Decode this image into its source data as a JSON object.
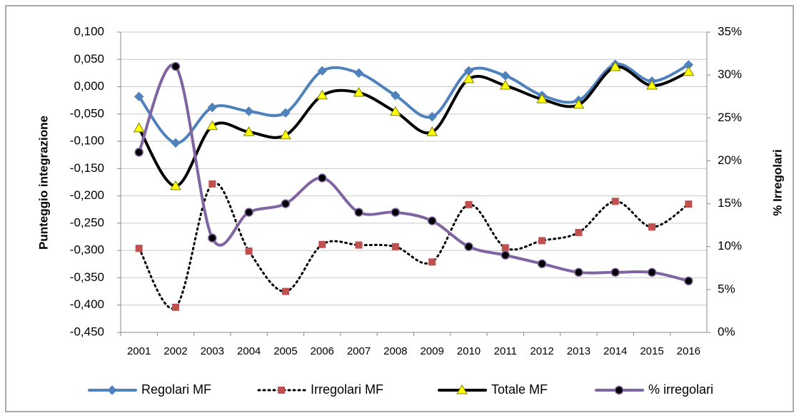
{
  "chart_data": {
    "type": "line",
    "categories": [
      "2001",
      "2002",
      "2003",
      "2004",
      "2005",
      "2006",
      "2007",
      "2008",
      "2009",
      "2010",
      "2011",
      "2012",
      "2013",
      "2014",
      "2015",
      "2016"
    ],
    "ylabel": "Punteggio integrazione",
    "y2label": "% Irregolari",
    "ylim": [
      -0.45,
      0.1
    ],
    "yticks": [
      {
        "value": 0.1,
        "label": "0,100"
      },
      {
        "value": 0.05,
        "label": "0,050"
      },
      {
        "value": 0,
        "label": "0,000"
      },
      {
        "value": -0.05,
        "label": "-0,050"
      },
      {
        "value": -0.1,
        "label": "-0,100"
      },
      {
        "value": -0.15,
        "label": "-0,150"
      },
      {
        "value": -0.2,
        "label": "-0,200"
      },
      {
        "value": -0.25,
        "label": "-0,250"
      },
      {
        "value": -0.3,
        "label": "-0,300"
      },
      {
        "value": -0.35,
        "label": "-0,350"
      },
      {
        "value": -0.4,
        "label": "-0,400"
      },
      {
        "value": -0.45,
        "label": "-0,450"
      }
    ],
    "y2lim": [
      0,
      35
    ],
    "y2ticks": [
      {
        "value": 35,
        "label": "35%"
      },
      {
        "value": 30,
        "label": "30%"
      },
      {
        "value": 25,
        "label": "25%"
      },
      {
        "value": 20,
        "label": "20%"
      },
      {
        "value": 15,
        "label": "15%"
      },
      {
        "value": 10,
        "label": "10%"
      },
      {
        "value": 5,
        "label": "5%"
      },
      {
        "value": 0,
        "label": "0%"
      }
    ],
    "grid": true,
    "legend": "bottom",
    "series": [
      {
        "name": "Regolari MF",
        "color": "#4f81bd",
        "marker": "diamond",
        "line": "solid",
        "values": [
          -0.018,
          -0.103,
          -0.038,
          -0.045,
          -0.048,
          0.029,
          0.025,
          -0.016,
          -0.055,
          0.029,
          0.02,
          -0.016,
          -0.025,
          0.041,
          0.01,
          0.04
        ]
      },
      {
        "name": "Irregolari MF",
        "color": "#c0504d",
        "marker": "square",
        "line": "dotted",
        "values": [
          -0.296,
          -0.404,
          -0.178,
          -0.301,
          -0.375,
          -0.289,
          -0.29,
          -0.293,
          -0.321,
          -0.216,
          -0.295,
          -0.282,
          -0.267,
          -0.21,
          -0.257,
          -0.215
        ]
      },
      {
        "name": "Totale MF",
        "color": "#ffff00",
        "marker": "triangle",
        "line": "solid",
        "values": [
          -0.076,
          -0.182,
          -0.072,
          -0.083,
          -0.089,
          -0.016,
          -0.011,
          -0.046,
          -0.083,
          0.014,
          0.002,
          -0.023,
          -0.033,
          0.036,
          0.002,
          0.027
        ]
      },
      {
        "name": "% irregolari",
        "color": "#8064a2",
        "marker": "circle",
        "line": "solid",
        "axis": "y2",
        "values": [
          21,
          31,
          11,
          14,
          15,
          18,
          14,
          14,
          13,
          10,
          9,
          8,
          7,
          7,
          7,
          6
        ]
      }
    ]
  }
}
